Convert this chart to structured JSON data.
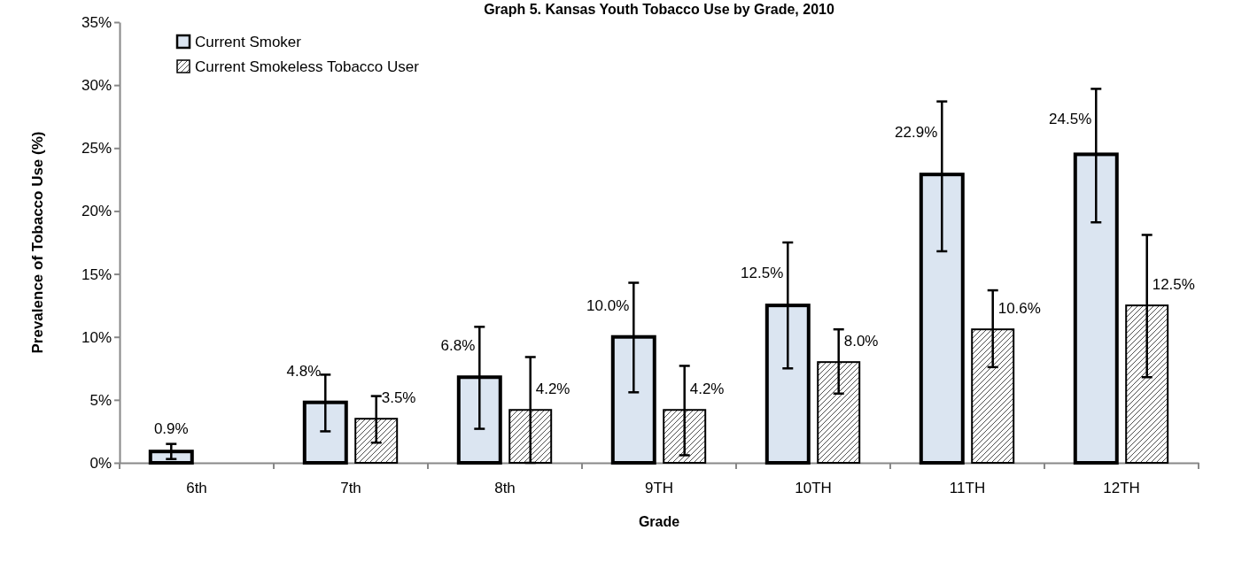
{
  "chart_data": {
    "type": "bar",
    "title": "Graph 5. Kansas Youth Tobacco Use by Grade, 2010",
    "xlabel": "Grade",
    "ylabel": "Prevalence of Tobacco Use (%)",
    "categories": [
      "6th",
      "7th",
      "8th",
      "9TH",
      "10TH",
      "11TH",
      "12TH"
    ],
    "series": [
      {
        "name": "Current Smoker",
        "color": "#dbe5f1",
        "values": [
          0.9,
          4.8,
          6.8,
          10.0,
          12.5,
          22.9,
          24.5
        ],
        "errors": [
          [
            0.3,
            1.5
          ],
          [
            2.5,
            7.0
          ],
          [
            2.7,
            10.8
          ],
          [
            5.6,
            14.3
          ],
          [
            7.5,
            17.5
          ],
          [
            16.8,
            28.7
          ],
          [
            19.1,
            29.7
          ]
        ],
        "value_labels": [
          "0.9%",
          "4.8%",
          "6.8%",
          "10.0%",
          "12.5%",
          "22.9%",
          "24.5%"
        ]
      },
      {
        "name": "Current Smokeless Tobacco User",
        "color": "#000000",
        "values": [
          null,
          3.5,
          4.2,
          4.2,
          8.0,
          10.6,
          12.5
        ],
        "errors": [
          null,
          [
            1.6,
            5.3
          ],
          [
            0.0,
            8.4
          ],
          [
            0.6,
            7.7
          ],
          [
            5.5,
            10.6
          ],
          [
            7.6,
            13.7
          ],
          [
            6.8,
            18.1
          ]
        ],
        "value_labels": [
          null,
          "3.5%",
          "4.2%",
          "4.2%",
          "8.0%",
          "10.6%",
          "12.5%"
        ]
      }
    ],
    "ylim": [
      0,
      35
    ],
    "yticks": [
      {
        "value": 0,
        "label": "0%"
      },
      {
        "value": 5,
        "label": "5%"
      },
      {
        "value": 10,
        "label": "10%"
      },
      {
        "value": 15,
        "label": "15%"
      },
      {
        "value": 20,
        "label": "20%"
      },
      {
        "value": 25,
        "label": "25%"
      },
      {
        "value": 30,
        "label": "30%"
      },
      {
        "value": 35,
        "label": "35%"
      }
    ],
    "grid": false,
    "legend": "top left"
  }
}
